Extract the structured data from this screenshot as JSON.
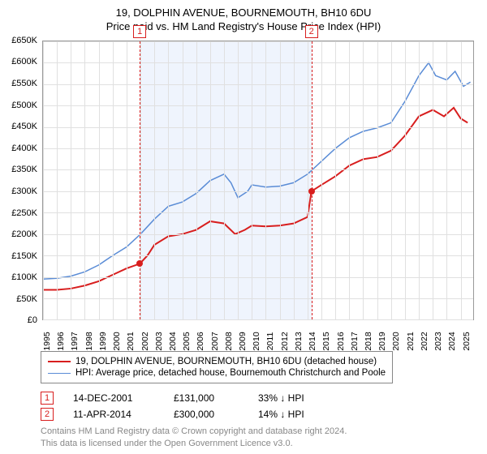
{
  "title": "19, DOLPHIN AVENUE, BOURNEMOUTH, BH10 6DU",
  "subtitle": "Price paid vs. HM Land Registry's House Price Index (HPI)",
  "chart": {
    "type": "line",
    "background_color": "#ffffff",
    "grid_color": "#e0e0e0",
    "axis_color": "#999999",
    "text_color": "#000000",
    "title_fontsize": 13,
    "label_fontsize": 11,
    "ylim": [
      0,
      650000
    ],
    "ytick_step": 50000,
    "ytick_labels": [
      "£0",
      "£50K",
      "£100K",
      "£150K",
      "£200K",
      "£250K",
      "£300K",
      "£350K",
      "£400K",
      "£450K",
      "£500K",
      "£550K",
      "£600K",
      "£650K"
    ],
    "xlim": [
      1995,
      2025.9
    ],
    "xtick_step": 1,
    "xtick_labels": [
      "1995",
      "1996",
      "1997",
      "1998",
      "1999",
      "2000",
      "2001",
      "2002",
      "2003",
      "2004",
      "2005",
      "2006",
      "2007",
      "2008",
      "2009",
      "2010",
      "2011",
      "2012",
      "2013",
      "2014",
      "2015",
      "2016",
      "2017",
      "2018",
      "2019",
      "2020",
      "2021",
      "2022",
      "2023",
      "2024",
      "2025"
    ],
    "shade_band": {
      "x_start": 2001.95,
      "x_end": 2014.28,
      "color": "rgba(100,149,237,0.10)"
    },
    "series": [
      {
        "id": "price_paid",
        "label": "19, DOLPHIN AVENUE, BOURNEMOUTH, BH10 6DU (detached house)",
        "color": "#d81e1e",
        "line_width": 2,
        "data": [
          [
            1995.0,
            70000
          ],
          [
            1996.0,
            70000
          ],
          [
            1997.0,
            73000
          ],
          [
            1998.0,
            80000
          ],
          [
            1999.0,
            90000
          ],
          [
            2000.0,
            105000
          ],
          [
            2001.0,
            120000
          ],
          [
            2001.95,
            131000
          ],
          [
            2002.5,
            150000
          ],
          [
            2003.0,
            175000
          ],
          [
            2004.0,
            195000
          ],
          [
            2005.0,
            200000
          ],
          [
            2006.0,
            210000
          ],
          [
            2007.0,
            230000
          ],
          [
            2008.0,
            225000
          ],
          [
            2008.8,
            200000
          ],
          [
            2009.5,
            210000
          ],
          [
            2010.0,
            220000
          ],
          [
            2011.0,
            218000
          ],
          [
            2012.0,
            220000
          ],
          [
            2013.0,
            225000
          ],
          [
            2014.0,
            240000
          ],
          [
            2014.28,
            300000
          ],
          [
            2015.0,
            315000
          ],
          [
            2016.0,
            335000
          ],
          [
            2017.0,
            360000
          ],
          [
            2018.0,
            375000
          ],
          [
            2019.0,
            380000
          ],
          [
            2020.0,
            395000
          ],
          [
            2021.0,
            430000
          ],
          [
            2022.0,
            475000
          ],
          [
            2023.0,
            490000
          ],
          [
            2023.8,
            475000
          ],
          [
            2024.5,
            495000
          ],
          [
            2025.0,
            470000
          ],
          [
            2025.5,
            460000
          ]
        ]
      },
      {
        "id": "hpi",
        "label": "HPI: Average price, detached house, Bournemouth Christchurch and Poole",
        "color": "#5a8cd6",
        "line_width": 1.5,
        "data": [
          [
            1995.0,
            95000
          ],
          [
            1996.0,
            97000
          ],
          [
            1997.0,
            102000
          ],
          [
            1998.0,
            112000
          ],
          [
            1999.0,
            128000
          ],
          [
            2000.0,
            150000
          ],
          [
            2001.0,
            170000
          ],
          [
            2002.0,
            200000
          ],
          [
            2003.0,
            235000
          ],
          [
            2004.0,
            265000
          ],
          [
            2005.0,
            275000
          ],
          [
            2006.0,
            295000
          ],
          [
            2007.0,
            325000
          ],
          [
            2008.0,
            340000
          ],
          [
            2008.5,
            320000
          ],
          [
            2009.0,
            285000
          ],
          [
            2009.7,
            300000
          ],
          [
            2010.0,
            315000
          ],
          [
            2011.0,
            310000
          ],
          [
            2012.0,
            312000
          ],
          [
            2013.0,
            320000
          ],
          [
            2014.0,
            340000
          ],
          [
            2015.0,
            370000
          ],
          [
            2016.0,
            400000
          ],
          [
            2017.0,
            425000
          ],
          [
            2018.0,
            440000
          ],
          [
            2019.0,
            448000
          ],
          [
            2020.0,
            460000
          ],
          [
            2021.0,
            510000
          ],
          [
            2022.0,
            570000
          ],
          [
            2022.7,
            600000
          ],
          [
            2023.2,
            570000
          ],
          [
            2024.0,
            560000
          ],
          [
            2024.6,
            580000
          ],
          [
            2025.2,
            545000
          ],
          [
            2025.7,
            555000
          ]
        ]
      }
    ],
    "markers": [
      {
        "id": 1,
        "label": "1",
        "x": 2001.95,
        "y": 131000,
        "color": "#d81e1e"
      },
      {
        "id": 2,
        "label": "2",
        "x": 2014.28,
        "y": 300000,
        "color": "#d81e1e"
      }
    ]
  },
  "legend": {
    "border_color": "#888888"
  },
  "sales": [
    {
      "marker": "1",
      "marker_color": "#d81e1e",
      "date": "14-DEC-2001",
      "price": "£131,000",
      "pct": "33%",
      "arrow": "↓",
      "vs": "HPI"
    },
    {
      "marker": "2",
      "marker_color": "#d81e1e",
      "date": "11-APR-2014",
      "price": "£300,000",
      "pct": "14%",
      "arrow": "↓",
      "vs": "HPI"
    }
  ],
  "footer": {
    "line1": "Contains HM Land Registry data © Crown copyright and database right 2024.",
    "line2": "This data is licensed under the Open Government Licence v3.0.",
    "color": "#888888"
  }
}
